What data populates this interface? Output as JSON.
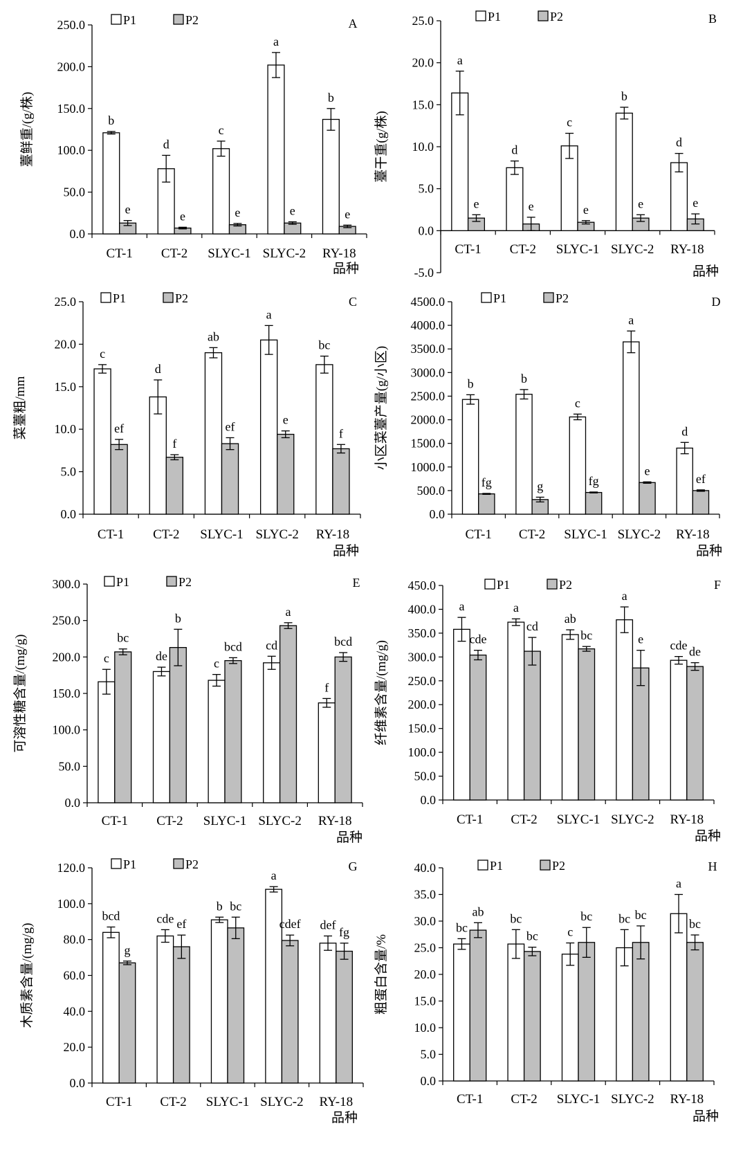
{
  "legend": {
    "p1": "P1",
    "p2": "P2"
  },
  "xlabel": "品种",
  "categories": [
    "CT-1",
    "CT-2",
    "SLYC-1",
    "SLYC-2",
    "RY-18"
  ],
  "colors": {
    "p1": "#ffffff",
    "p2": "#bfbfbf",
    "stroke": "#000000"
  },
  "chart_data": [
    {
      "type": "bar",
      "panel": "A",
      "ylabel": "薹鲜重/(g/株)",
      "xlabel": "品种",
      "ylim": [
        0,
        250
      ],
      "yticks": [
        0,
        50,
        100,
        150,
        200,
        250
      ],
      "categories": [
        "CT-1",
        "CT-2",
        "SLYC-1",
        "SLYC-2",
        "RY-18"
      ],
      "series": [
        {
          "name": "P1",
          "values": [
            121,
            78,
            102,
            202,
            137
          ],
          "errors": [
            1.5,
            16,
            9,
            15,
            13
          ],
          "letters": [
            "b",
            "d",
            "c",
            "a",
            "b"
          ]
        },
        {
          "name": "P2",
          "values": [
            13,
            7,
            11,
            13,
            9
          ],
          "errors": [
            3,
            1,
            1.5,
            1.5,
            1.5
          ],
          "letters": [
            "e",
            "e",
            "e",
            "e",
            "e"
          ]
        }
      ]
    },
    {
      "type": "bar",
      "panel": "B",
      "ylabel": "薹干重(g/株)",
      "xlabel": "品种",
      "ylim": [
        -5,
        25
      ],
      "yticks": [
        -5,
        0,
        5,
        10,
        15,
        20,
        25
      ],
      "categories": [
        "CT-1",
        "CT-2",
        "SLYC-1",
        "SLYC-2",
        "RY-18"
      ],
      "series": [
        {
          "name": "P1",
          "values": [
            16.4,
            7.5,
            10.1,
            14,
            8.1
          ],
          "errors": [
            2.6,
            0.8,
            1.5,
            0.7,
            1.1
          ],
          "letters": [
            "a",
            "d",
            "c",
            "b",
            "d"
          ]
        },
        {
          "name": "P2",
          "values": [
            1.5,
            0.8,
            1,
            1.5,
            1.4
          ],
          "errors": [
            0.4,
            0.8,
            0.2,
            0.4,
            0.6
          ],
          "letters": [
            "e",
            "e",
            "e",
            "e",
            "e"
          ]
        }
      ]
    },
    {
      "type": "bar",
      "panel": "C",
      "ylabel": "菜薹粗/mm",
      "xlabel": "品种",
      "ylim": [
        0,
        25
      ],
      "yticks": [
        0,
        5,
        10,
        15,
        20,
        25
      ],
      "categories": [
        "CT-1",
        "CT-2",
        "SLYC-1",
        "SLYC-2",
        "RY-18"
      ],
      "series": [
        {
          "name": "P1",
          "values": [
            17.1,
            13.8,
            19,
            20.5,
            17.6
          ],
          "errors": [
            0.5,
            2,
            0.6,
            1.7,
            1
          ],
          "letters": [
            "c",
            "d",
            "ab",
            "a",
            "bc"
          ]
        },
        {
          "name": "P2",
          "values": [
            8.2,
            6.7,
            8.3,
            9.4,
            7.7
          ],
          "errors": [
            0.6,
            0.3,
            0.7,
            0.4,
            0.5
          ],
          "letters": [
            "ef",
            "f",
            "ef",
            "e",
            "f"
          ]
        }
      ]
    },
    {
      "type": "bar",
      "panel": "D",
      "ylabel": "小区菜薹产量(g/小区)",
      "xlabel": "品种",
      "ylim": [
        0,
        4500
      ],
      "yticks": [
        0,
        500,
        1000,
        1500,
        2000,
        2500,
        3000,
        3500,
        4000,
        4500
      ],
      "categories": [
        "CT-1",
        "CT-2",
        "SLYC-1",
        "SLYC-2",
        "RY-18"
      ],
      "series": [
        {
          "name": "P1",
          "values": [
            2430,
            2540,
            2060,
            3650,
            1400
          ],
          "errors": [
            100,
            100,
            60,
            230,
            120
          ],
          "letters": [
            "b",
            "b",
            "c",
            "a",
            "d"
          ]
        },
        {
          "name": "P2",
          "values": [
            430,
            310,
            460,
            670,
            500
          ],
          "errors": [
            10,
            50,
            10,
            15,
            15
          ],
          "letters": [
            "fg",
            "g",
            "fg",
            "e",
            "ef"
          ]
        }
      ]
    },
    {
      "type": "bar",
      "panel": "E",
      "ylabel": "可溶性糖含量/(mg/g)",
      "xlabel": "品种",
      "ylim": [
        0,
        300
      ],
      "yticks": [
        0,
        50,
        100,
        150,
        200,
        250,
        300
      ],
      "categories": [
        "CT-1",
        "CT-2",
        "SLYC-1",
        "SLYC-2",
        "RY-18"
      ],
      "series": [
        {
          "name": "P1",
          "values": [
            166,
            180,
            168,
            192,
            137
          ],
          "errors": [
            17,
            6,
            8,
            9,
            6
          ],
          "letters": [
            "c",
            "de",
            "c",
            "cd",
            "f"
          ]
        },
        {
          "name": "P2",
          "values": [
            207,
            213,
            195,
            243,
            200
          ],
          "errors": [
            4,
            25,
            4,
            4,
            6
          ],
          "letters": [
            "bc",
            "b",
            "bcd",
            "a",
            "bcd"
          ]
        }
      ]
    },
    {
      "type": "bar",
      "panel": "F",
      "ylabel": "纤维素含量/(mg/g)",
      "xlabel": "品种",
      "ylim": [
        0,
        450
      ],
      "yticks": [
        0,
        50,
        100,
        150,
        200,
        250,
        300,
        350,
        400,
        450
      ],
      "categories": [
        "CT-1",
        "CT-2",
        "SLYC-1",
        "SLYC-2",
        "RY-18"
      ],
      "series": [
        {
          "name": "P1",
          "values": [
            358,
            373,
            347,
            378,
            293
          ],
          "errors": [
            25,
            7,
            10,
            27,
            8
          ],
          "letters": [
            "a",
            "a",
            "ab",
            "a",
            "cde"
          ]
        },
        {
          "name": "P2",
          "values": [
            304,
            312,
            317,
            277,
            280
          ],
          "errors": [
            10,
            29,
            5,
            37,
            8
          ],
          "letters": [
            "cde",
            "cd",
            "bc",
            "e",
            "de"
          ]
        }
      ]
    },
    {
      "type": "bar",
      "panel": "G",
      "ylabel": "木质素含量/(mg/g)",
      "xlabel": "品种",
      "ylim": [
        0,
        120
      ],
      "yticks": [
        0,
        20,
        40,
        60,
        80,
        100,
        120
      ],
      "categories": [
        "CT-1",
        "CT-2",
        "SLYC-1",
        "SLYC-2",
        "RY-18"
      ],
      "series": [
        {
          "name": "P1",
          "values": [
            84,
            82,
            91,
            108,
            78
          ],
          "errors": [
            3,
            3.5,
            1.5,
            1.5,
            4
          ],
          "letters": [
            "bcd",
            "cde",
            "b",
            "a",
            "def"
          ]
        },
        {
          "name": "P2",
          "values": [
            67,
            76,
            86.5,
            79.5,
            73.5
          ],
          "errors": [
            1,
            6.5,
            6,
            3,
            4.5
          ],
          "letters": [
            "g",
            "ef",
            "bc",
            "cdef",
            "fg"
          ]
        }
      ]
    },
    {
      "type": "bar",
      "panel": "H",
      "ylabel": "粗蛋白含量/%",
      "xlabel": "品种",
      "ylim": [
        0,
        40
      ],
      "yticks": [
        0,
        5,
        10,
        15,
        20,
        25,
        30,
        35,
        40
      ],
      "categories": [
        "CT-1",
        "CT-2",
        "SLYC-1",
        "SLYC-2",
        "RY-18"
      ],
      "series": [
        {
          "name": "P1",
          "values": [
            25.7,
            25.7,
            23.8,
            25,
            31.4
          ],
          "errors": [
            1,
            2.7,
            2.1,
            3.4,
            3.6
          ],
          "letters": [
            "bc",
            "bc",
            "c",
            "bc",
            "a"
          ]
        },
        {
          "name": "P2",
          "values": [
            28.3,
            24.3,
            26,
            26,
            26
          ],
          "errors": [
            1.4,
            0.8,
            2.8,
            3.1,
            1.4
          ],
          "letters": [
            "ab",
            "bc",
            "bc",
            "bc",
            "bc"
          ]
        }
      ]
    }
  ]
}
